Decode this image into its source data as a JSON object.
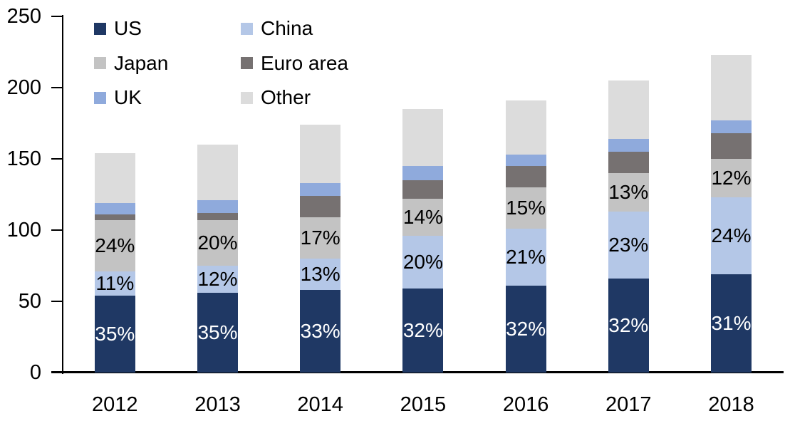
{
  "background_color": "#ffffff",
  "text_color": "#000000",
  "chart_data": {
    "type": "bar",
    "stacked": true,
    "title": "",
    "categories": [
      "2012",
      "2013",
      "2014",
      "2015",
      "2016",
      "2017",
      "2018"
    ],
    "series": [
      {
        "name": "US",
        "color": "#1f3864",
        "values": [
          54,
          56,
          58,
          59,
          61,
          66,
          69
        ],
        "labels": [
          "35%",
          "35%",
          "33%",
          "32%",
          "32%",
          "32%",
          "31%"
        ],
        "label_color": "#ffffff"
      },
      {
        "name": "China",
        "color": "#b4c7e7",
        "values": [
          17,
          19,
          22,
          37,
          40,
          47,
          54
        ],
        "labels": [
          "11%",
          "12%",
          "13%",
          "20%",
          "21%",
          "23%",
          "24%"
        ],
        "label_color": "#000000"
      },
      {
        "name": "Japan",
        "color": "#c3c3c3",
        "values": [
          36,
          32,
          29,
          26,
          29,
          27,
          27
        ],
        "labels": [
          "24%",
          "20%",
          "17%",
          "14%",
          "15%",
          "13%",
          "12%"
        ],
        "label_color": "#000000"
      },
      {
        "name": "Euro area",
        "color": "#767171",
        "values": [
          4,
          5,
          15,
          13,
          15,
          15,
          18
        ]
      },
      {
        "name": "UK",
        "color": "#8faadc",
        "values": [
          8,
          9,
          9,
          10,
          8,
          9,
          9
        ]
      },
      {
        "name": "Other",
        "color": "#dcdcdc",
        "values": [
          35,
          39,
          41,
          40,
          38,
          41,
          46
        ]
      }
    ],
    "totals": [
      154,
      160,
      174,
      185,
      191,
      205,
      223
    ],
    "y_axis": {
      "min": 0,
      "max": 250,
      "step": 50,
      "tick_labels": [
        "0",
        "50",
        "100",
        "150",
        "200",
        "250"
      ]
    },
    "x_axis": {
      "tick_labels": [
        "2012",
        "2013",
        "2014",
        "2015",
        "2016",
        "2017",
        "2018"
      ]
    },
    "legend": {
      "position": "top-left",
      "columns": 2,
      "order": [
        "US",
        "China",
        "Japan",
        "Euro area",
        "UK",
        "Other"
      ]
    },
    "grid": false
  }
}
